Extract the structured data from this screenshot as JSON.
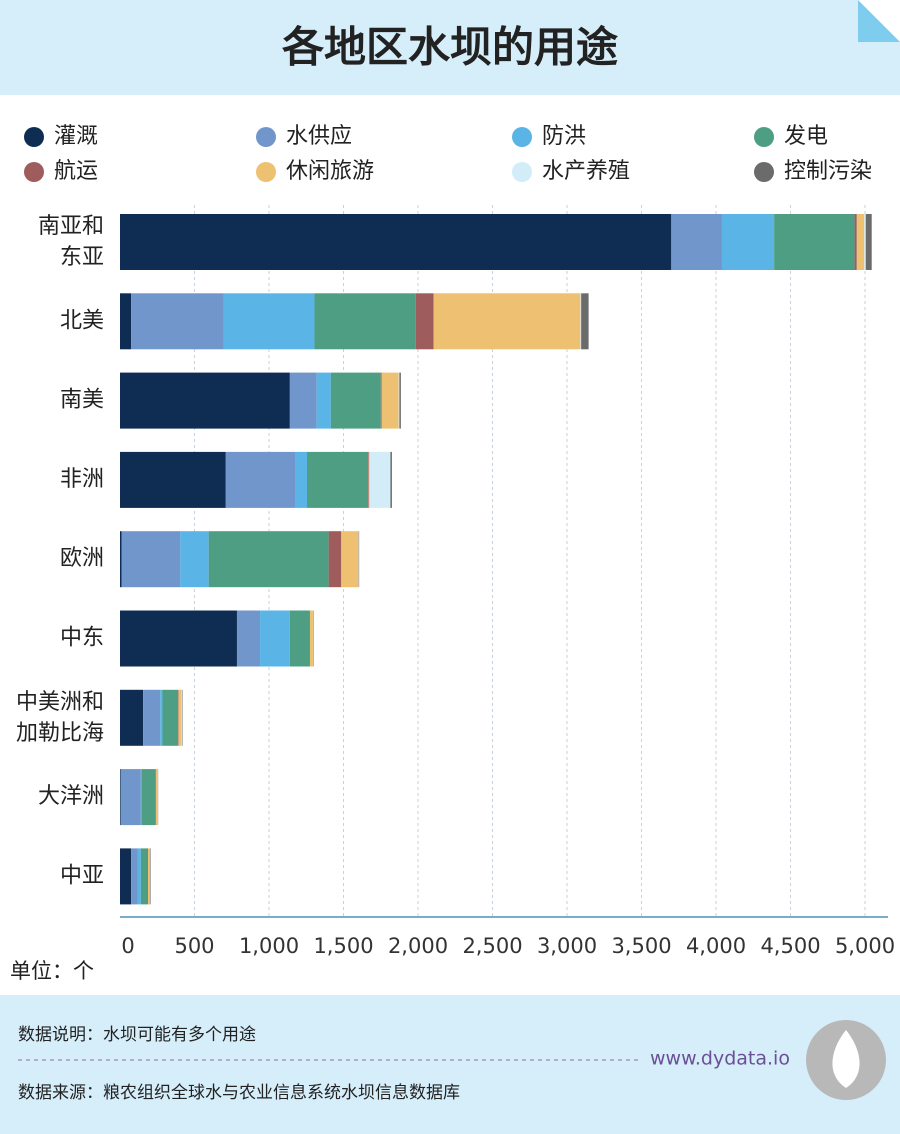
{
  "chart_data": {
    "type": "stacked-bar-horizontal",
    "title": "各地区水坝的用途",
    "categories": [
      "南亚和东亚",
      "北美",
      "南美",
      "非洲",
      "欧洲",
      "中东",
      "中美洲和加勒比海",
      "大洋洲",
      "中亚"
    ],
    "series": [
      {
        "name": "灌溉",
        "color": "#0f2d52",
        "values": [
          3700,
          75,
          1140,
          710,
          10,
          785,
          155,
          5,
          75
        ]
      },
      {
        "name": "水供应",
        "color": "#7096cc",
        "values": [
          340,
          620,
          180,
          470,
          395,
          155,
          115,
          135,
          45
        ]
      },
      {
        "name": "防洪",
        "color": "#5ab4e6",
        "values": [
          350,
          610,
          95,
          75,
          190,
          200,
          15,
          5,
          20
        ]
      },
      {
        "name": "发电",
        "color": "#4e9e84",
        "values": [
          540,
          680,
          335,
          410,
          805,
          130,
          105,
          95,
          45
        ]
      },
      {
        "name": "航运",
        "color": "#9e5c5c",
        "values": [
          15,
          120,
          5,
          5,
          85,
          5,
          3,
          2,
          3
        ]
      },
      {
        "name": "休闲旅游",
        "color": "#eec072",
        "values": [
          50,
          985,
          115,
          5,
          115,
          20,
          20,
          10,
          10
        ]
      },
      {
        "name": "水产养殖",
        "color": "#d2ecf8",
        "values": [
          10,
          5,
          5,
          140,
          2,
          2,
          5,
          2,
          2
        ]
      },
      {
        "name": "控制污染",
        "color": "#6b6b6b",
        "values": [
          40,
          50,
          10,
          10,
          3,
          3,
          3,
          2,
          5
        ]
      }
    ],
    "xlim": [
      0,
      5000
    ],
    "xticks": [
      0,
      500,
      {
        "value": 1000,
        "label": "1,000"
      },
      {
        "value": 1500,
        "label": "1,500"
      },
      {
        "value": 2000,
        "label": "2,000"
      },
      {
        "value": 2500,
        "label": "2,500"
      },
      {
        "value": 3000,
        "label": "3,000"
      },
      {
        "value": 3500,
        "label": "3,500"
      },
      {
        "value": 4000,
        "label": "4,000"
      },
      {
        "value": 4500,
        "label": "4,500"
      },
      {
        "value": 5000,
        "label": "5,000"
      }
    ],
    "grid": true,
    "unit": "单位：个"
  },
  "footer": {
    "note": "数据说明：水坝可能有多个用途",
    "source": "数据来源：粮农组织全球水与农业信息系统水坝信息数据库",
    "site": "www.dydata.io"
  }
}
